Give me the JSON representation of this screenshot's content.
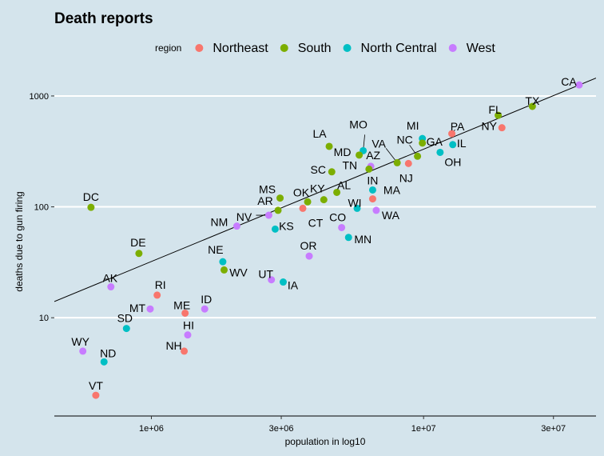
{
  "chart_data": {
    "type": "scatter",
    "title": "Death reports",
    "xlabel": "population in log10",
    "ylabel": "deaths due to gun firing",
    "x_scale": "log10",
    "y_scale": "log10",
    "xlim": [
      440000,
      43000000
    ],
    "ylim": [
      1.3,
      1700
    ],
    "x_ticks": [
      {
        "value": 1000000,
        "label": "1e+06"
      },
      {
        "value": 3000000,
        "label": "3e+06"
      },
      {
        "value": 10000000,
        "label": "1e+07"
      },
      {
        "value": 30000000,
        "label": "3e+07"
      }
    ],
    "y_ticks": [
      {
        "value": 10,
        "label": "10"
      },
      {
        "value": 100,
        "label": "100"
      },
      {
        "value": 1000,
        "label": "1000"
      }
    ],
    "grid": true,
    "legend": {
      "title": "region",
      "position": "top",
      "entries": [
        {
          "name": "Northeast",
          "color": "#F8766D"
        },
        {
          "name": "South",
          "color": "#7CAE00"
        },
        {
          "name": "North Central",
          "color": "#00BFC4"
        },
        {
          "name": "West",
          "color": "#C77CFF"
        }
      ]
    },
    "trend_line": {
      "points": [
        [
          440000,
          14
        ],
        [
          43000000,
          1450
        ]
      ],
      "color": "#000000"
    },
    "points": [
      {
        "label": "CA",
        "region": "West",
        "x": 37300000,
        "y": 1257
      },
      {
        "label": "TX",
        "region": "South",
        "x": 25100000,
        "y": 805
      },
      {
        "label": "FL",
        "region": "South",
        "x": 18800000,
        "y": 669
      },
      {
        "label": "NY",
        "region": "Northeast",
        "x": 19400000,
        "y": 517
      },
      {
        "label": "PA",
        "region": "Northeast",
        "x": 12700000,
        "y": 457
      },
      {
        "label": "IL",
        "region": "North Central",
        "x": 12800000,
        "y": 364
      },
      {
        "label": "OH",
        "region": "North Central",
        "x": 11500000,
        "y": 310
      },
      {
        "label": "MI",
        "region": "North Central",
        "x": 9900000,
        "y": 413
      },
      {
        "label": "GA",
        "region": "South",
        "x": 9900000,
        "y": 376
      },
      {
        "label": "NC",
        "region": "South",
        "x": 9500000,
        "y": 286
      },
      {
        "label": "NJ",
        "region": "Northeast",
        "x": 8800000,
        "y": 246
      },
      {
        "label": "VA",
        "region": "South",
        "x": 8000000,
        "y": 250
      },
      {
        "label": "WA",
        "region": "West",
        "x": 6700000,
        "y": 93
      },
      {
        "label": "MA",
        "region": "Northeast",
        "x": 6500000,
        "y": 118
      },
      {
        "label": "IN",
        "region": "North Central",
        "x": 6500000,
        "y": 142
      },
      {
        "label": "AZ",
        "region": "West",
        "x": 6400000,
        "y": 232
      },
      {
        "label": "TN",
        "region": "South",
        "x": 6300000,
        "y": 219
      },
      {
        "label": "MO",
        "region": "North Central",
        "x": 6000000,
        "y": 321
      },
      {
        "label": "MD",
        "region": "South",
        "x": 5800000,
        "y": 293
      },
      {
        "label": "WI",
        "region": "North Central",
        "x": 5700000,
        "y": 97
      },
      {
        "label": "MN",
        "region": "North Central",
        "x": 5300000,
        "y": 53
      },
      {
        "label": "CO",
        "region": "West",
        "x": 5000000,
        "y": 65
      },
      {
        "label": "AL",
        "region": "South",
        "x": 4800000,
        "y": 135
      },
      {
        "label": "SC",
        "region": "South",
        "x": 4600000,
        "y": 207
      },
      {
        "label": "LA",
        "region": "South",
        "x": 4500000,
        "y": 351
      },
      {
        "label": "KY",
        "region": "South",
        "x": 4300000,
        "y": 116
      },
      {
        "label": "OR",
        "region": "West",
        "x": 3800000,
        "y": 36
      },
      {
        "label": "OK",
        "region": "South",
        "x": 3750000,
        "y": 111
      },
      {
        "label": "CT",
        "region": "Northeast",
        "x": 3600000,
        "y": 97
      },
      {
        "label": "IA",
        "region": "North Central",
        "x": 3050000,
        "y": 21
      },
      {
        "label": "MS",
        "region": "South",
        "x": 2970000,
        "y": 120
      },
      {
        "label": "AR",
        "region": "South",
        "x": 2920000,
        "y": 93
      },
      {
        "label": "KS",
        "region": "North Central",
        "x": 2850000,
        "y": 63
      },
      {
        "label": "UT",
        "region": "West",
        "x": 2760000,
        "y": 22
      },
      {
        "label": "NV",
        "region": "West",
        "x": 2700000,
        "y": 84
      },
      {
        "label": "NM",
        "region": "West",
        "x": 2060000,
        "y": 67
      },
      {
        "label": "WV",
        "region": "South",
        "x": 1850000,
        "y": 27
      },
      {
        "label": "NE",
        "region": "North Central",
        "x": 1830000,
        "y": 32
      },
      {
        "label": "ID",
        "region": "West",
        "x": 1570000,
        "y": 12
      },
      {
        "label": "HI",
        "region": "West",
        "x": 1360000,
        "y": 7
      },
      {
        "label": "ME",
        "region": "Northeast",
        "x": 1330000,
        "y": 11
      },
      {
        "label": "NH",
        "region": "Northeast",
        "x": 1320000,
        "y": 5
      },
      {
        "label": "RI",
        "region": "Northeast",
        "x": 1050000,
        "y": 16
      },
      {
        "label": "MT",
        "region": "West",
        "x": 990000,
        "y": 12
      },
      {
        "label": "DE",
        "region": "South",
        "x": 900000,
        "y": 38
      },
      {
        "label": "SD",
        "region": "North Central",
        "x": 810000,
        "y": 8
      },
      {
        "label": "AK",
        "region": "West",
        "x": 710000,
        "y": 19
      },
      {
        "label": "ND",
        "region": "North Central",
        "x": 670000,
        "y": 4
      },
      {
        "label": "VT",
        "region": "Northeast",
        "x": 625000,
        "y": 2
      },
      {
        "label": "DC",
        "region": "South",
        "x": 600000,
        "y": 99
      },
      {
        "label": "WY",
        "region": "West",
        "x": 560000,
        "y": 5
      }
    ]
  }
}
